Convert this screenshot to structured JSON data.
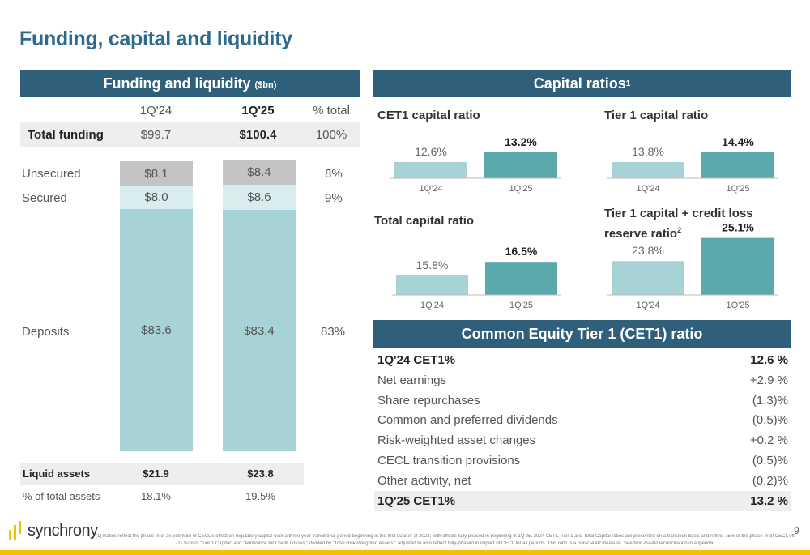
{
  "title": "Funding, capital and liquidity",
  "page_number": "9",
  "logo_text": "synchrony",
  "funding": {
    "header": "Funding and liquidity",
    "header_unit": "($bn)",
    "col_1q24": "1Q'24",
    "col_1q25": "1Q'25",
    "col_pct": "% total",
    "total_label": "Total funding",
    "total_1q24": "$99.7",
    "total_1q25": "$100.4",
    "total_pct": "100%",
    "rows": {
      "unsecured": {
        "label": "Unsecured",
        "v1": "$8.1",
        "v2": "$8.4",
        "pct": "8%"
      },
      "secured": {
        "label": "Secured",
        "v1": "$8.0",
        "v2": "$8.6",
        "pct": "9%"
      },
      "deposits": {
        "label": "Deposits",
        "v1": "$83.6",
        "v2": "$83.4",
        "pct": "83%"
      }
    },
    "liquid_label": "Liquid assets",
    "liquid_1q24": "$21.9",
    "liquid_1q25": "$23.8",
    "pct_assets_label": "% of total assets",
    "pct_assets_1q24": "18.1%",
    "pct_assets_1q25": "19.5%"
  },
  "capital": {
    "header": "Capital ratios",
    "header_sup": "1"
  },
  "cet1_table": {
    "header": "Common Equity Tier 1 (CET1) ratio",
    "rows": [
      {
        "label": "1Q'24 CET1%",
        "value": "12.6 %"
      },
      {
        "label": "Net earnings",
        "value": "+2.9 %"
      },
      {
        "label": "Share repurchases",
        "value": "(1.3)%"
      },
      {
        "label": "Common and preferred dividends",
        "value": "(0.5)%"
      },
      {
        "label": "Risk-weighted asset changes",
        "value": "+0.2 %"
      },
      {
        "label": "CECL transition provisions",
        "value": "(0.5)%"
      },
      {
        "label": "Other activity, net",
        "value": "(0.2)%"
      },
      {
        "label": "1Q'25 CET1%",
        "value": "13.2 %"
      }
    ]
  },
  "footnotes": {
    "f1": "(1) Ratios reflect the phase-in of an estimate of CECL's effect on regulatory capital over a three-year transitional period beginning in the first quarter of 2022, with effects fully phased in beginning in 1Q'25. 2024 CET1, Tier 1 and Total Capital ratios are presented on a transition basis and reflect 75% of the phase-in of CECL effects.",
    "f2": "(2) Sum of \"Tier 1 Capital\" and \"Allowance for Credit Losses,\" divided by \"Total Risk-Weighted Assets,\" adjusted to also reflect fully-phased in impact of CECL for all periods. This ratio is a non-GAAP measure. See Non-GAAP reconciliation in appendix."
  },
  "colors": {
    "header_bg": "#2f5f7b",
    "title": "#2a6a8a",
    "bar_prior": "#a7d2d6",
    "bar_current": "#5aa9ad",
    "unsecured": "#c2c4c6",
    "secured": "#d9ecee",
    "deposits": "#a7d2d6",
    "logo_yellow": "#f2c200"
  },
  "chart_data": [
    {
      "type": "bar",
      "title": "CET1 capital ratio",
      "categories": [
        "1Q'24",
        "1Q'25"
      ],
      "values": [
        12.6,
        13.2
      ],
      "labels": [
        "12.6%",
        "13.2%"
      ]
    },
    {
      "type": "bar",
      "title": "Tier 1 capital ratio",
      "categories": [
        "1Q'24",
        "1Q'25"
      ],
      "values": [
        13.8,
        14.4
      ],
      "labels": [
        "13.8%",
        "14.4%"
      ]
    },
    {
      "type": "bar",
      "title": "Total capital ratio",
      "categories": [
        "1Q'24",
        "1Q'25"
      ],
      "values": [
        15.8,
        16.5
      ],
      "labels": [
        "15.8%",
        "16.5%"
      ]
    },
    {
      "type": "bar",
      "title": "Tier 1 capital + credit loss reserve ratio",
      "title_sup": "2",
      "categories": [
        "1Q'24",
        "1Q'25"
      ],
      "values": [
        23.8,
        25.1
      ],
      "labels": [
        "23.8%",
        "25.1%"
      ]
    },
    {
      "type": "bar",
      "title": "Funding and liquidity ($bn)",
      "stacked": true,
      "categories": [
        "1Q'24",
        "1Q'25"
      ],
      "series": [
        {
          "name": "Deposits",
          "values": [
            83.6,
            83.4
          ]
        },
        {
          "name": "Secured",
          "values": [
            8.0,
            8.6
          ]
        },
        {
          "name": "Unsecured",
          "values": [
            8.1,
            8.4
          ]
        }
      ]
    }
  ]
}
